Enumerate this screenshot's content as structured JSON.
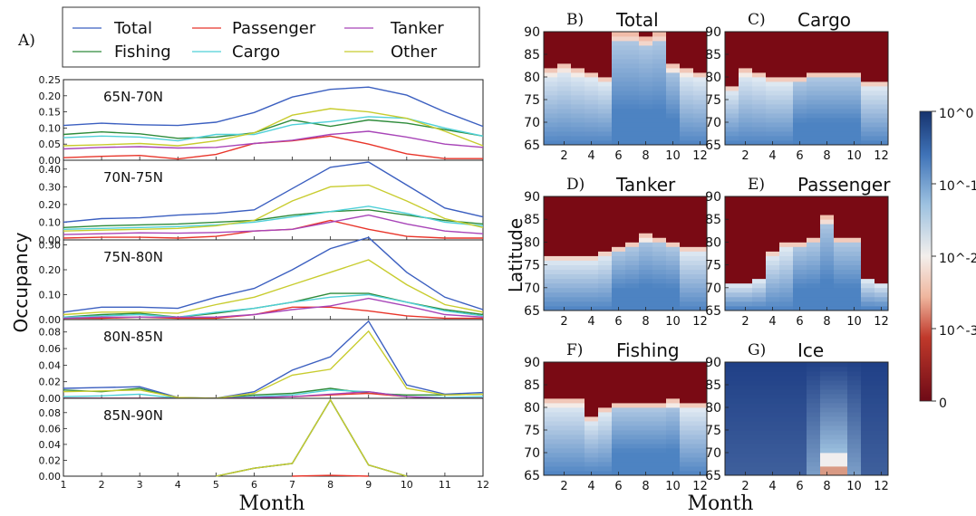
{
  "figure_labels": {
    "panel_a": "A)",
    "line_xlabel": "Month",
    "line_ylabel": "Occupancy",
    "heat_xlabel": "Month",
    "heat_ylabel": "Latitude"
  },
  "legend": {
    "entries": [
      {
        "name": "Total",
        "color": "#3b5fc0"
      },
      {
        "name": "Fishing",
        "color": "#2e8b3a"
      },
      {
        "name": "Passenger",
        "color": "#e8352a"
      },
      {
        "name": "Cargo",
        "color": "#4fd0d8"
      },
      {
        "name": "Tanker",
        "color": "#a845b8"
      },
      {
        "name": "Other",
        "color": "#c8cc2e"
      }
    ]
  },
  "colorbar": {
    "ticks": [
      "10^0",
      "10^-1",
      "10^-2",
      "10^-3",
      "0"
    ],
    "colors": [
      "#1b3a7a",
      "#5b8fc8",
      "#f2eeea",
      "#e07a5e",
      "#7a0a14"
    ]
  },
  "chart_data": [
    {
      "type": "line",
      "panel": "65N-70N",
      "title": "65N-70N",
      "x": [
        1,
        2,
        3,
        4,
        5,
        6,
        7,
        8,
        9,
        10,
        11,
        12
      ],
      "ylim": [
        0,
        0.25
      ],
      "yticks": [
        "0.00",
        "0.05",
        "0.10",
        "0.15",
        "0.20",
        "0.25"
      ],
      "series": [
        {
          "name": "Total",
          "values": [
            0.108,
            0.115,
            0.11,
            0.108,
            0.118,
            0.148,
            0.196,
            0.22,
            0.227,
            0.202,
            0.15,
            0.105
          ]
        },
        {
          "name": "Fishing",
          "values": [
            0.08,
            0.088,
            0.082,
            0.068,
            0.072,
            0.085,
            0.125,
            0.105,
            0.125,
            0.115,
            0.095,
            0.075
          ]
        },
        {
          "name": "Passenger",
          "values": [
            0.008,
            0.012,
            0.015,
            0.004,
            0.018,
            0.052,
            0.06,
            0.075,
            0.05,
            0.02,
            0.005,
            0.005
          ]
        },
        {
          "name": "Cargo",
          "values": [
            0.07,
            0.075,
            0.072,
            0.06,
            0.08,
            0.08,
            0.11,
            0.12,
            0.135,
            0.13,
            0.1,
            0.075
          ]
        },
        {
          "name": "Tanker",
          "values": [
            0.035,
            0.04,
            0.042,
            0.038,
            0.04,
            0.052,
            0.062,
            0.08,
            0.09,
            0.072,
            0.05,
            0.04
          ]
        },
        {
          "name": "Other",
          "values": [
            0.045,
            0.048,
            0.052,
            0.045,
            0.06,
            0.085,
            0.14,
            0.16,
            0.15,
            0.13,
            0.09,
            0.045
          ]
        }
      ]
    },
    {
      "type": "line",
      "panel": "70N-75N",
      "title": "70N-75N",
      "x": [
        1,
        2,
        3,
        4,
        5,
        6,
        7,
        8,
        9,
        10,
        11,
        12
      ],
      "ylim": [
        0,
        0.45
      ],
      "yticks": [
        "0.00",
        "0.10",
        "0.20",
        "0.30",
        "0.40"
      ],
      "series": [
        {
          "name": "Total",
          "values": [
            0.1,
            0.12,
            0.125,
            0.14,
            0.15,
            0.17,
            0.29,
            0.41,
            0.44,
            0.31,
            0.18,
            0.13
          ]
        },
        {
          "name": "Fishing",
          "values": [
            0.07,
            0.08,
            0.085,
            0.09,
            0.1,
            0.11,
            0.14,
            0.16,
            0.17,
            0.14,
            0.11,
            0.09
          ]
        },
        {
          "name": "Passenger",
          "values": [
            0.01,
            0.015,
            0.015,
            0.01,
            0.02,
            0.05,
            0.06,
            0.11,
            0.06,
            0.02,
            0.01,
            0.01
          ]
        },
        {
          "name": "Cargo",
          "values": [
            0.06,
            0.065,
            0.07,
            0.075,
            0.085,
            0.1,
            0.13,
            0.16,
            0.19,
            0.15,
            0.1,
            0.08
          ]
        },
        {
          "name": "Tanker",
          "values": [
            0.03,
            0.035,
            0.04,
            0.038,
            0.042,
            0.05,
            0.06,
            0.1,
            0.14,
            0.09,
            0.05,
            0.035
          ]
        },
        {
          "name": "Other",
          "values": [
            0.05,
            0.055,
            0.06,
            0.065,
            0.08,
            0.11,
            0.22,
            0.3,
            0.31,
            0.22,
            0.12,
            0.07
          ]
        }
      ]
    },
    {
      "type": "line",
      "panel": "75N-80N",
      "title": "75N-80N",
      "x": [
        1,
        2,
        3,
        4,
        5,
        6,
        7,
        8,
        9,
        10,
        11,
        12
      ],
      "ylim": [
        0,
        0.32
      ],
      "yticks": [
        "0.00",
        "0.10",
        "0.20",
        "0.30"
      ],
      "series": [
        {
          "name": "Total",
          "values": [
            0.03,
            0.05,
            0.05,
            0.045,
            0.09,
            0.125,
            0.2,
            0.285,
            0.33,
            0.19,
            0.09,
            0.04
          ]
        },
        {
          "name": "Fishing",
          "values": [
            0.01,
            0.02,
            0.025,
            0.01,
            0.025,
            0.045,
            0.07,
            0.105,
            0.105,
            0.07,
            0.04,
            0.02
          ]
        },
        {
          "name": "Passenger",
          "values": [
            0.005,
            0.005,
            0.01,
            0.005,
            0.005,
            0.02,
            0.05,
            0.05,
            0.035,
            0.015,
            0.005,
            0.005
          ]
        },
        {
          "name": "Cargo",
          "values": [
            0.01,
            0.015,
            0.02,
            0.01,
            0.03,
            0.045,
            0.07,
            0.09,
            0.1,
            0.07,
            0.035,
            0.015
          ]
        },
        {
          "name": "Tanker",
          "values": [
            0.005,
            0.01,
            0.01,
            0.01,
            0.01,
            0.02,
            0.04,
            0.055,
            0.085,
            0.055,
            0.02,
            0.01
          ]
        },
        {
          "name": "Other",
          "values": [
            0.02,
            0.03,
            0.03,
            0.025,
            0.06,
            0.09,
            0.14,
            0.19,
            0.24,
            0.14,
            0.06,
            0.03
          ]
        }
      ]
    },
    {
      "type": "line",
      "panel": "80N-85N",
      "title": "80N-85N",
      "x": [
        1,
        2,
        3,
        4,
        5,
        6,
        7,
        8,
        9,
        10,
        11,
        12
      ],
      "ylim": [
        0,
        0.095
      ],
      "yticks": [
        "0.00",
        "0.02",
        "0.04",
        "0.06",
        "0.08"
      ],
      "series": [
        {
          "name": "Total",
          "values": [
            0.012,
            0.013,
            0.014,
            0.001,
            0.0,
            0.008,
            0.034,
            0.05,
            0.093,
            0.016,
            0.005,
            0.007
          ]
        },
        {
          "name": "Fishing",
          "values": [
            0.01,
            0.008,
            0.012,
            0.0,
            0.0,
            0.004,
            0.006,
            0.012,
            0.006,
            0.004,
            0.004,
            0.005
          ]
        },
        {
          "name": "Passenger",
          "values": [
            0.0,
            0.0,
            0.0,
            0.0,
            0.0,
            0.001,
            0.002,
            0.004,
            0.006,
            0.002,
            0.0,
            0.0
          ]
        },
        {
          "name": "Cargo",
          "values": [
            0.002,
            0.003,
            0.005,
            0.0,
            0.0,
            0.002,
            0.004,
            0.01,
            0.008,
            0.002,
            0.001,
            0.002
          ]
        },
        {
          "name": "Tanker",
          "values": [
            0.0,
            0.0,
            0.0,
            0.0,
            0.0,
            0.001,
            0.002,
            0.005,
            0.008,
            0.002,
            0.0,
            0.0
          ]
        },
        {
          "name": "Other",
          "values": [
            0.008,
            0.009,
            0.01,
            0.001,
            0.0,
            0.006,
            0.028,
            0.035,
            0.081,
            0.012,
            0.004,
            0.005
          ]
        }
      ]
    },
    {
      "type": "line",
      "panel": "85N-90N",
      "title": "85N-90N",
      "x": [
        1,
        2,
        3,
        4,
        5,
        6,
        7,
        8,
        9,
        10,
        11,
        12
      ],
      "ylim": [
        0,
        0.098
      ],
      "yticks": [
        "0.00",
        "0.02",
        "0.04",
        "0.06",
        "0.08"
      ],
      "series": [
        {
          "name": "Total",
          "values": [
            null,
            null,
            null,
            null,
            0.0,
            0.01,
            0.016,
            0.096,
            0.014,
            0.0,
            null,
            null
          ]
        },
        {
          "name": "Fishing",
          "values": [
            null,
            null,
            null,
            null,
            0.0,
            0.01,
            0.016,
            0.096,
            0.014,
            0.0,
            null,
            null
          ]
        },
        {
          "name": "Passenger",
          "values": [
            null,
            null,
            null,
            null,
            null,
            null,
            0.0,
            0.001,
            0.0,
            null,
            null,
            null
          ]
        },
        {
          "name": "Other",
          "values": [
            null,
            null,
            null,
            null,
            0.0,
            0.01,
            0.016,
            0.096,
            0.014,
            0.0,
            null,
            null
          ]
        }
      ]
    },
    {
      "type": "heatmap",
      "panel_label": "B)",
      "title": "Total",
      "x": [
        1,
        2,
        3,
        4,
        5,
        6,
        7,
        8,
        9,
        10,
        11,
        12
      ],
      "xticks": [
        "2",
        "4",
        "6",
        "8",
        "10",
        "12"
      ],
      "yticks": [
        "65",
        "70",
        "75",
        "80",
        "85",
        "90"
      ],
      "ylim": [
        65,
        90
      ],
      "ice_free_top": [
        82,
        83,
        82,
        81,
        80,
        90,
        90,
        89,
        90,
        83,
        82,
        81
      ]
    },
    {
      "type": "heatmap",
      "panel_label": "C)",
      "title": "Cargo",
      "x": [
        1,
        2,
        3,
        4,
        5,
        6,
        7,
        8,
        9,
        10,
        11,
        12
      ],
      "xticks": [
        "2",
        "4",
        "6",
        "8",
        "10",
        "12"
      ],
      "yticks": [
        "65",
        "70",
        "75",
        "80",
        "85",
        "90"
      ],
      "ylim": [
        65,
        90
      ],
      "ice_free_top": [
        78,
        82,
        81,
        80,
        80,
        80,
        81,
        81,
        81,
        81,
        79,
        79
      ]
    },
    {
      "type": "heatmap",
      "panel_label": "D)",
      "title": "Tanker",
      "x": [
        1,
        2,
        3,
        4,
        5,
        6,
        7,
        8,
        9,
        10,
        11,
        12
      ],
      "xticks": [
        "2",
        "4",
        "6",
        "8",
        "10",
        "12"
      ],
      "yticks": [
        "65",
        "70",
        "75",
        "80",
        "85",
        "90"
      ],
      "ylim": [
        65,
        90
      ],
      "ice_free_top": [
        77,
        77,
        77,
        77,
        78,
        79,
        80,
        82,
        81,
        80,
        79,
        79
      ]
    },
    {
      "type": "heatmap",
      "panel_label": "E)",
      "title": "Passenger",
      "x": [
        1,
        2,
        3,
        4,
        5,
        6,
        7,
        8,
        9,
        10,
        11,
        12
      ],
      "xticks": [
        "2",
        "4",
        "6",
        "8",
        "10",
        "12"
      ],
      "yticks": [
        "65",
        "70",
        "75",
        "80",
        "85",
        "90"
      ],
      "ylim": [
        65,
        90
      ],
      "ice_free_top": [
        71,
        71,
        72,
        78,
        80,
        80,
        81,
        86,
        81,
        81,
        72,
        71
      ]
    },
    {
      "type": "heatmap",
      "panel_label": "F)",
      "title": "Fishing",
      "x": [
        1,
        2,
        3,
        4,
        5,
        6,
        7,
        8,
        9,
        10,
        11,
        12
      ],
      "xticks": [
        "2",
        "4",
        "6",
        "8",
        "10",
        "12"
      ],
      "yticks": [
        "65",
        "70",
        "75",
        "80",
        "85",
        "90"
      ],
      "ylim": [
        65,
        90
      ],
      "ice_free_top": [
        82,
        82,
        82,
        78,
        80,
        81,
        81,
        81,
        81,
        82,
        81,
        81
      ]
    },
    {
      "type": "heatmap",
      "panel_label": "G)",
      "title": "Ice",
      "x": [
        1,
        2,
        3,
        4,
        5,
        6,
        7,
        8,
        9,
        10,
        11,
        12
      ],
      "xticks": [
        "2",
        "4",
        "6",
        "8",
        "10",
        "12"
      ],
      "yticks": [
        "65",
        "70",
        "75",
        "80",
        "85",
        "90"
      ],
      "ylim": [
        65,
        90
      ],
      "ice_free_top": null
    }
  ]
}
